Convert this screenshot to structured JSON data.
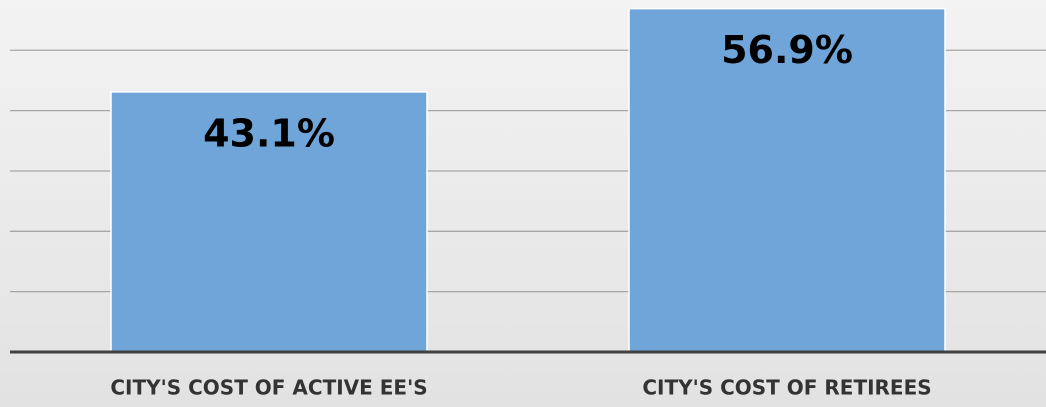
{
  "chart_data": {
    "type": "bar",
    "categories": [
      "CITY'S COST OF ACTIVE EE'S",
      "CITY'S COST OF RETIREES"
    ],
    "values": [
      43.1,
      56.9
    ],
    "value_labels": [
      "43.1%",
      "56.9%"
    ],
    "color": "#6fa5d8",
    "ylim": [
      0,
      58
    ],
    "yticks": [
      0,
      10,
      20,
      30,
      40,
      50
    ],
    "grid": true
  }
}
